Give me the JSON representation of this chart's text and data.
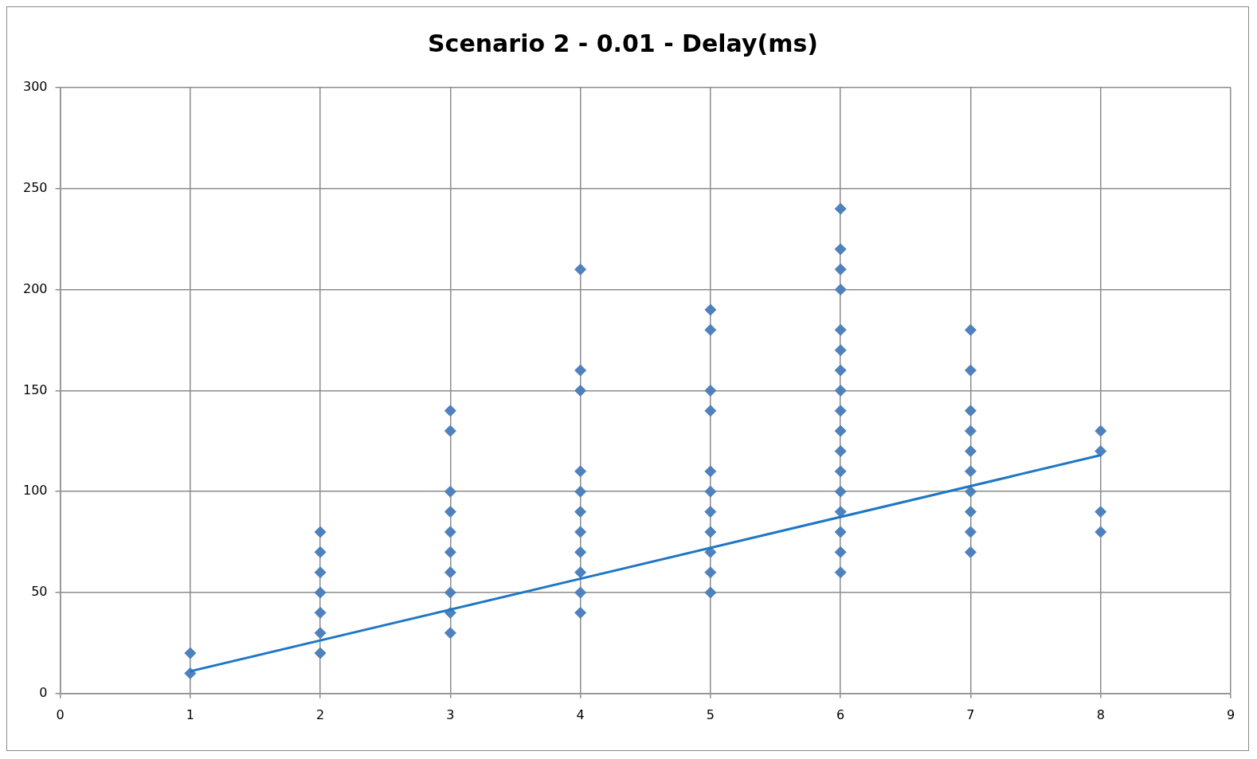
{
  "chart_data": {
    "type": "scatter",
    "title": "Scenario 2 - 0.01 - Delay(ms)",
    "xlim": [
      0,
      9
    ],
    "xticks": [
      0,
      1,
      2,
      3,
      4,
      5,
      6,
      7,
      8,
      9
    ],
    "ylim": [
      0,
      300
    ],
    "yticks": [
      0,
      50,
      100,
      150,
      200,
      250,
      300
    ],
    "grid": true,
    "legend": false,
    "marker": "diamond",
    "series": [
      {
        "type": "scatter",
        "color": "#4f81bd",
        "x": [
          1,
          1,
          2,
          2,
          2,
          2,
          2,
          2,
          2,
          3,
          3,
          3,
          3,
          3,
          3,
          3,
          3,
          3,
          3,
          4,
          4,
          4,
          4,
          4,
          4,
          4,
          4,
          4,
          4,
          4,
          5,
          5,
          5,
          5,
          5,
          5,
          5,
          5,
          5,
          5,
          5,
          6,
          6,
          6,
          6,
          6,
          6,
          6,
          6,
          6,
          6,
          6,
          6,
          6,
          6,
          6,
          6,
          6,
          7,
          7,
          7,
          7,
          7,
          7,
          7,
          7,
          7,
          7,
          8,
          8,
          8,
          8
        ],
        "values": [
          20,
          10,
          80,
          70,
          60,
          50,
          40,
          30,
          20,
          140,
          130,
          100,
          90,
          80,
          70,
          60,
          50,
          40,
          30,
          210,
          160,
          150,
          110,
          100,
          90,
          80,
          70,
          60,
          50,
          40,
          190,
          180,
          150,
          140,
          110,
          100,
          90,
          80,
          70,
          60,
          50,
          240,
          220,
          210,
          200,
          180,
          170,
          160,
          150,
          140,
          130,
          120,
          110,
          100,
          90,
          80,
          70,
          60,
          180,
          160,
          140,
          130,
          120,
          110,
          100,
          90,
          80,
          70,
          130,
          120,
          90,
          80
        ]
      },
      {
        "type": "line",
        "color": "#1f77c4",
        "x": [
          1,
          8
        ],
        "values": [
          11,
          118
        ],
        "marker": "none",
        "line_style": "solid"
      }
    ]
  }
}
